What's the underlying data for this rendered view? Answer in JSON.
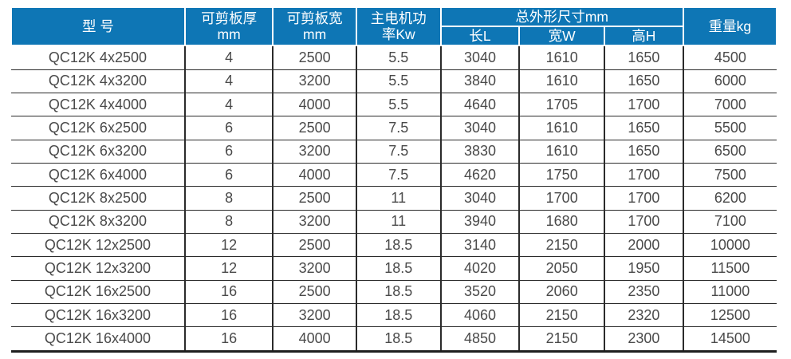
{
  "accent_colors": {
    "header_bg": "#0e76b5",
    "header_text": "#ffffff",
    "body_text": "#4a4a4a",
    "grid_line": "#2b2b2b"
  },
  "table": {
    "headers": {
      "model": "型 号",
      "plate_thickness": "可剪板厚\nmm",
      "plate_width": "可剪板宽\nmm",
      "motor_power": "主电机功\n率Kw",
      "dimensions_group": "总外形尺寸mm",
      "length": "长L",
      "width": "宽W",
      "height": "高H",
      "weight": "重量kg"
    },
    "column_keys": [
      "model",
      "plate-thickness",
      "plate-width",
      "motor-power",
      "length-l",
      "width-w",
      "height-h",
      "weight"
    ],
    "rows": [
      [
        "QC12K 4x2500",
        "4",
        "2500",
        "5.5",
        "3040",
        "1610",
        "1650",
        "4500"
      ],
      [
        "QC12K 4x3200",
        "4",
        "3200",
        "5.5",
        "3840",
        "1610",
        "1650",
        "6000"
      ],
      [
        "QC12K 4x4000",
        "4",
        "4000",
        "5.5",
        "4640",
        "1705",
        "1700",
        "7000"
      ],
      [
        "QC12K 6x2500",
        "6",
        "2500",
        "7.5",
        "3040",
        "1610",
        "1650",
        "5500"
      ],
      [
        "QC12K 6x3200",
        "6",
        "3200",
        "7.5",
        "3830",
        "1610",
        "1650",
        "6500"
      ],
      [
        "QC12K 6x4000",
        "6",
        "4000",
        "7.5",
        "4620",
        "1750",
        "1700",
        "7500"
      ],
      [
        "QC12K 8x2500",
        "8",
        "2500",
        "11",
        "3040",
        "1700",
        "1700",
        "6200"
      ],
      [
        "QC12K 8x3200",
        "8",
        "3200",
        "11",
        "3940",
        "1680",
        "1700",
        "7100"
      ],
      [
        "QC12K 12x2500",
        "12",
        "2500",
        "18.5",
        "3140",
        "2150",
        "2000",
        "10000"
      ],
      [
        "QC12K 12x3200",
        "12",
        "3200",
        "18.5",
        "4020",
        "2050",
        "1950",
        "11500"
      ],
      [
        "QC12K 16x2500",
        "16",
        "2500",
        "18.5",
        "3520",
        "2060",
        "2350",
        "11000"
      ],
      [
        "QC12K 16x3200",
        "16",
        "3200",
        "18.5",
        "4060",
        "2150",
        "2320",
        "12500"
      ],
      [
        "QC12K 16x4000",
        "16",
        "4000",
        "18.5",
        "4850",
        "2150",
        "2300",
        "14500"
      ]
    ]
  }
}
